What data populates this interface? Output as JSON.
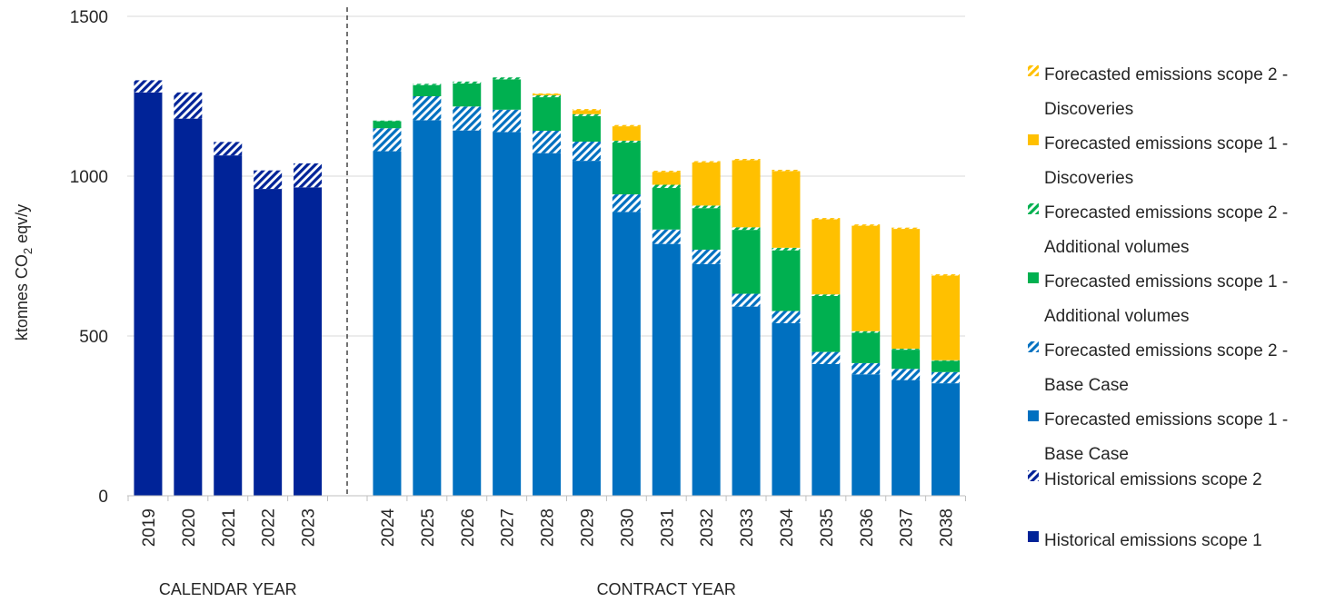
{
  "chart_data": {
    "type": "bar",
    "stacked": true,
    "ylabel": "ktonnes CO",
    "ylabel_sub": "2",
    "ylabel_suffix": " eqv/y",
    "ylim": [
      0,
      1500
    ],
    "yticks": [
      0,
      500,
      1000,
      1500
    ],
    "grid": true,
    "legend_position": "right",
    "groups": [
      {
        "label": "CALENDAR YEAR",
        "categories": [
          "2019",
          "2020",
          "2021",
          "2022",
          "2023"
        ]
      },
      {
        "label": "CONTRACT YEAR",
        "categories": [
          "2024",
          "2025",
          "2026",
          "2027",
          "2028",
          "2029",
          "2030",
          "2031",
          "2032",
          "2033",
          "2034",
          "2035",
          "2036",
          "2037",
          "2038"
        ]
      }
    ],
    "categories": [
      "2019",
      "2020",
      "2021",
      "2022",
      "2023",
      "2024",
      "2025",
      "2026",
      "2027",
      "2028",
      "2029",
      "2030",
      "2031",
      "2032",
      "2033",
      "2034",
      "2035",
      "2036",
      "2037",
      "2038"
    ],
    "series": [
      {
        "name": "Historical emissions scope 1",
        "color": "#002398",
        "pattern": "solid",
        "values": [
          1262,
          1180,
          1065,
          960,
          965,
          0,
          0,
          0,
          0,
          0,
          0,
          0,
          0,
          0,
          0,
          0,
          0,
          0,
          0,
          0
        ]
      },
      {
        "name": "Historical emissions scope 2",
        "color": "#002398",
        "pattern": "hatch",
        "values": [
          38,
          82,
          42,
          58,
          75,
          0,
          0,
          0,
          0,
          0,
          0,
          0,
          0,
          0,
          0,
          0,
          0,
          0,
          0,
          0
        ]
      },
      {
        "name": "Forecasted emissions scope 1 - Base Case",
        "color": "#0070c0",
        "pattern": "solid",
        "values": [
          0,
          0,
          0,
          0,
          0,
          1078,
          1175,
          1143,
          1138,
          1072,
          1048,
          888,
          788,
          725,
          592,
          540,
          412,
          380,
          362,
          352
        ]
      },
      {
        "name": "Forecasted emissions scope 2 - Base Case",
        "color": "#0070c0",
        "pattern": "hatch",
        "values": [
          0,
          0,
          0,
          0,
          0,
          72,
          75,
          75,
          70,
          70,
          60,
          55,
          45,
          45,
          40,
          38,
          38,
          35,
          35,
          35
        ]
      },
      {
        "name": "Forecasted emissions scope 1 - Additional volumes",
        "color": "#00b050",
        "pattern": "solid",
        "values": [
          0,
          0,
          0,
          0,
          0,
          22,
          35,
          72,
          95,
          105,
          80,
          162,
          130,
          130,
          200,
          190,
          175,
          95,
          60,
          35
        ]
      },
      {
        "name": "Forecasted emissions scope 2 - Additional volumes",
        "color": "#00b050",
        "pattern": "hatch",
        "values": [
          0,
          0,
          0,
          0,
          0,
          2,
          4,
          6,
          6,
          6,
          6,
          6,
          10,
          8,
          8,
          8,
          5,
          5,
          3,
          2
        ]
      },
      {
        "name": "Forecasted emissions scope 1 - Discoveries",
        "color": "#ffc000",
        "pattern": "solid",
        "values": [
          0,
          0,
          0,
          0,
          0,
          0,
          0,
          0,
          0,
          4,
          12,
          45,
          40,
          135,
          210,
          240,
          235,
          330,
          375,
          265
        ]
      },
      {
        "name": "Forecasted emissions scope 2 - Discoveries",
        "color": "#ffc000",
        "pattern": "hatch",
        "values": [
          0,
          0,
          0,
          0,
          0,
          0,
          0,
          0,
          0,
          2,
          4,
          4,
          4,
          4,
          4,
          4,
          4,
          4,
          4,
          4
        ]
      }
    ],
    "legend_order": [
      7,
      6,
      5,
      4,
      3,
      2,
      1,
      0
    ],
    "legend_labels": [
      [
        "Forecasted emissions scope 2 -",
        "Discoveries"
      ],
      [
        "Forecasted emissions scope 1 -",
        "Discoveries"
      ],
      [
        "Forecasted emissions scope 2 -",
        "Additional volumes"
      ],
      [
        "Forecasted emissions scope 1 -",
        "Additional volumes"
      ],
      [
        "Forecasted emissions scope 2 -",
        "Base Case"
      ],
      [
        "Forecasted emissions scope 1 -",
        "Base Case"
      ],
      [
        "Historical emissions scope 2"
      ],
      [
        "Historical emissions scope 1"
      ]
    ]
  }
}
